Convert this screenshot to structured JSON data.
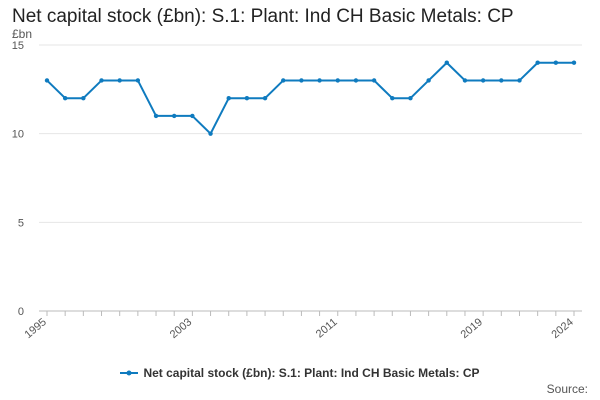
{
  "chart_data": {
    "type": "line",
    "title": "Net capital stock (£bn): S.1: Plant: Ind CH Basic Metals: CP",
    "ylabel": "£bn",
    "xlabel": "",
    "ylim": [
      0,
      15
    ],
    "yticks": [
      0,
      5,
      10,
      15
    ],
    "xticks": [
      "1995",
      "2003",
      "2011",
      "2019",
      "2024"
    ],
    "grid": true,
    "legend_position": "bottom",
    "x": [
      1995,
      1996,
      1997,
      1998,
      1999,
      2000,
      2001,
      2002,
      2003,
      2004,
      2005,
      2006,
      2007,
      2008,
      2009,
      2010,
      2011,
      2012,
      2013,
      2014,
      2015,
      2016,
      2017,
      2018,
      2019,
      2020,
      2021,
      2022,
      2023,
      2024
    ],
    "series": [
      {
        "name": "Net capital stock (£bn): S.1: Plant: Ind CH Basic Metals: CP",
        "color": "#0f7bbf",
        "values": [
          13,
          12,
          12,
          13,
          13,
          13,
          11,
          11,
          11,
          10,
          12,
          12,
          12,
          13,
          13,
          13,
          13,
          13,
          13,
          12,
          12,
          13,
          14,
          13,
          13,
          13,
          13,
          14,
          14,
          14
        ]
      }
    ],
    "source_label": "Source:"
  }
}
